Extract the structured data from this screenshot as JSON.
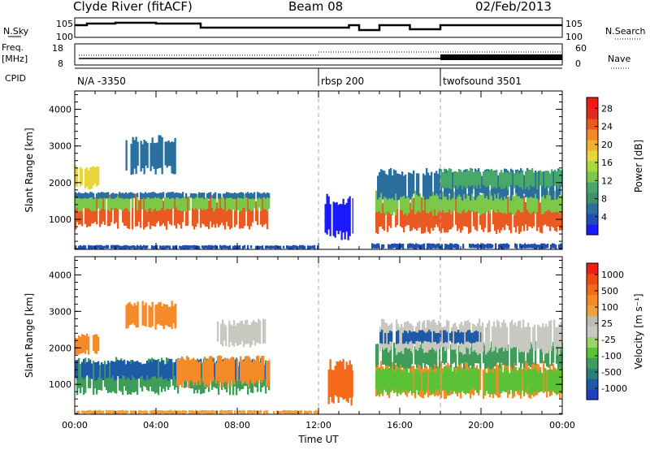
{
  "header": {
    "station": "Clyde River (fitACF)",
    "beam": "Beam 08",
    "date": "02/Feb/2013"
  },
  "summary_panels": {
    "nsky_label": "N.Sky",
    "nsky_ticks": [
      "10^5",
      "10^0"
    ],
    "nsearch_label": "N.Search",
    "nsearch_ticks": [
      "10^5",
      "10^0"
    ],
    "freq_label_top": "Freq.",
    "freq_label_unit": "[MHz]",
    "freq_ticks": [
      "18",
      "8"
    ],
    "nave_label": "Nave",
    "nave_ticks": [
      "60",
      "0"
    ],
    "cpid_label": "CPID",
    "cpid_segments": [
      {
        "label": "N/A -3350",
        "start_h": 0,
        "end_h": 12
      },
      {
        "label": "rbsp 200",
        "start_h": 12,
        "end_h": 18
      },
      {
        "label": "twofsound 3501",
        "start_h": 18,
        "end_h": 24
      }
    ]
  },
  "axes": {
    "xlabel": "Time UT",
    "x_ticks": [
      "00:00",
      "04:00",
      "08:00",
      "12:00",
      "16:00",
      "20:00",
      "00:00"
    ],
    "ylabel": "Slant Range [km]",
    "y_ticks": [
      "1000",
      "2000",
      "3000",
      "4000"
    ]
  },
  "power_colorbar": {
    "label": "Power [dB]",
    "ticks": [
      "4",
      "8",
      "12",
      "16",
      "20",
      "24",
      "28"
    ],
    "colors": [
      "#1a1aff",
      "#1f4fb4",
      "#2b6f9e",
      "#3f8f6f",
      "#48a86a",
      "#7cc94a",
      "#a8d83a",
      "#e6d63a",
      "#f0b030",
      "#f08a28",
      "#e85a22",
      "#e02c1c",
      "#ee1a14"
    ]
  },
  "velocity_colorbar": {
    "label": "Velocity [m s⁻¹]",
    "ticks": [
      "1000",
      "500",
      "100",
      "25",
      "-25",
      "-100",
      "-500",
      "-1000"
    ],
    "colors": [
      "#1f3fc0",
      "#1f5aa8",
      "#2a7f7a",
      "#3f9c5a",
      "#5ac234",
      "#9ad26a",
      "#c8c8c0",
      "#bcbcb4",
      "#f0a040",
      "#f58a28",
      "#f56a1a",
      "#f04a14",
      "#ee1f14"
    ]
  },
  "chart_data": {
    "type": "heatmap",
    "x_range_hours": [
      0,
      24
    ],
    "y_range_km": [
      180,
      4500
    ],
    "mode_change_lines_h": [
      12,
      18
    ],
    "panels": [
      {
        "name": "power",
        "blobs": [
          {
            "t0": 0.0,
            "t1": 1.2,
            "r0": 1800,
            "r1": 2500,
            "c": "#e6d63a"
          },
          {
            "t0": 0.0,
            "t1": 9.6,
            "r0": 700,
            "r1": 1700,
            "c": "#e85a22"
          },
          {
            "t0": 0.0,
            "t1": 9.6,
            "r0": 1200,
            "r1": 1700,
            "c": "#7cc94a"
          },
          {
            "t0": 0.0,
            "t1": 9.6,
            "r0": 1550,
            "r1": 1750,
            "c": "#2b6f9e"
          },
          {
            "t0": 2.5,
            "t1": 5.0,
            "r0": 2200,
            "r1": 3300,
            "c": "#2b6f9e"
          },
          {
            "t0": 0.0,
            "t1": 12.0,
            "r0": 180,
            "r1": 300,
            "c": "#1f4fb4"
          },
          {
            "t0": 12.3,
            "t1": 13.7,
            "r0": 400,
            "r1": 1700,
            "c": "#1a1aff"
          },
          {
            "t0": 14.8,
            "t1": 24.0,
            "r0": 600,
            "r1": 1650,
            "c": "#e85a22"
          },
          {
            "t0": 14.8,
            "t1": 24.0,
            "r0": 1100,
            "r1": 1800,
            "c": "#7cc94a"
          },
          {
            "t0": 14.8,
            "t1": 24.0,
            "r0": 1500,
            "r1": 2400,
            "c": "#2b6f9e"
          },
          {
            "t0": 18.0,
            "t1": 24.0,
            "r0": 1800,
            "r1": 2400,
            "c": "#48a86a"
          },
          {
            "t0": 14.6,
            "t1": 24.0,
            "r0": 180,
            "r1": 350,
            "c": "#1f4fb4"
          }
        ]
      },
      {
        "name": "velocity",
        "blobs": [
          {
            "t0": 0.0,
            "t1": 1.2,
            "r0": 1800,
            "r1": 2400,
            "c": "#f58a28"
          },
          {
            "t0": 0.0,
            "t1": 9.6,
            "r0": 700,
            "r1": 1750,
            "c": "#3f9c5a"
          },
          {
            "t0": 0.0,
            "t1": 9.6,
            "r0": 1100,
            "r1": 1700,
            "c": "#1f5aa8"
          },
          {
            "t0": 5.0,
            "t1": 9.6,
            "r0": 900,
            "r1": 1800,
            "c": "#f58a28"
          },
          {
            "t0": 2.5,
            "t1": 5.0,
            "r0": 2500,
            "r1": 3300,
            "c": "#f58a28"
          },
          {
            "t0": 7.0,
            "t1": 9.4,
            "r0": 2000,
            "r1": 2800,
            "c": "#c8c8c0"
          },
          {
            "t0": 0.0,
            "t1": 12.0,
            "r0": 180,
            "r1": 300,
            "c": "#f0a040"
          },
          {
            "t0": 12.3,
            "t1": 13.7,
            "r0": 400,
            "r1": 1700,
            "c": "#f56a1a"
          },
          {
            "t0": 14.8,
            "t1": 24.0,
            "r0": 600,
            "r1": 1650,
            "c": "#f58a28"
          },
          {
            "t0": 14.8,
            "t1": 24.0,
            "r0": 700,
            "r1": 1500,
            "c": "#5ac234"
          },
          {
            "t0": 14.8,
            "t1": 24.0,
            "r0": 1400,
            "r1": 2200,
            "c": "#3f9c5a"
          },
          {
            "t0": 15.0,
            "t1": 24.0,
            "r0": 1800,
            "r1": 2800,
            "c": "#c8c8c0"
          },
          {
            "t0": 15.0,
            "t1": 20.0,
            "r0": 2100,
            "r1": 2500,
            "c": "#1f5aa8"
          }
        ]
      }
    ]
  }
}
